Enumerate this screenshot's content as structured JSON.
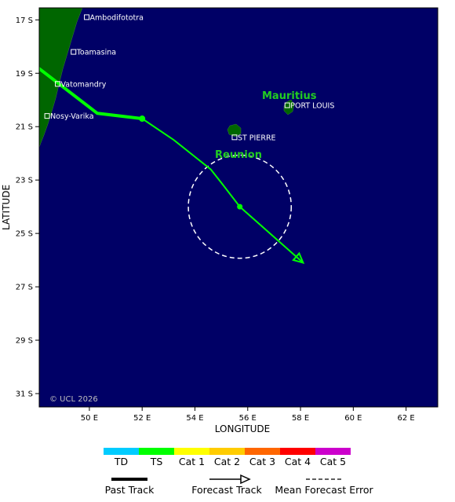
{
  "map": {
    "xlabel": "LONGITUDE",
    "ylabel": "LATITUDE",
    "lon_range": [
      48.1,
      63.2
    ],
    "lat_range": [
      -31.5,
      -16.55
    ],
    "lon_ticks": [
      "50 E",
      "52 E",
      "54 E",
      "56 E",
      "58 E",
      "60 E",
      "62 E"
    ],
    "lat_ticks": [
      "17 S",
      "19 S",
      "21 S",
      "23 S",
      "25 S",
      "27 S",
      "29 S",
      "31 S"
    ],
    "ocean_color": "#000066",
    "land_color": "#006600",
    "copyright": "© UCL 2026"
  },
  "places": [
    {
      "name": "Ambodifototra",
      "lon": 49.9,
      "lat": -16.9
    },
    {
      "name": "Toamasina",
      "lon": 49.4,
      "lat": -18.2
    },
    {
      "name": "Vatomandry",
      "lon": 48.8,
      "lat": -19.4
    },
    {
      "name": "Nosy-Varika",
      "lon": 48.4,
      "lat": -20.6
    },
    {
      "name": "PORT LOUIS",
      "lon": 57.5,
      "lat": -20.2
    },
    {
      "name": "ST PIERRE",
      "lon": 55.5,
      "lat": -21.4
    }
  ],
  "islands": {
    "mauritius": {
      "name": "Mauritius"
    },
    "reunion": {
      "name": "Reunion"
    }
  },
  "track": {
    "past": [
      [
        48.0,
        -18.75
      ],
      [
        50.3,
        -20.5
      ],
      [
        52.0,
        -20.7
      ]
    ],
    "forecast": [
      [
        52.0,
        -20.7
      ],
      [
        53.2,
        -21.5
      ],
      [
        54.6,
        -22.6
      ],
      [
        55.0,
        -23.1
      ],
      [
        55.7,
        -24.0
      ],
      [
        58.1,
        -26.1
      ]
    ],
    "past_color": "#00ff00",
    "forecast_color": "#00ff00",
    "error_circle": {
      "center": [
        55.7,
        -24.0
      ],
      "radius_deg": 1.95
    }
  },
  "legend": {
    "categories": [
      {
        "label": "TD",
        "color": "#00ccff"
      },
      {
        "label": "TS",
        "color": "#00ff00"
      },
      {
        "label": "Cat 1",
        "color": "#ffff00"
      },
      {
        "label": "Cat 2",
        "color": "#ffcc00"
      },
      {
        "label": "Cat 3",
        "color": "#ff6600"
      },
      {
        "label": "Cat 4",
        "color": "#ff0000"
      },
      {
        "label": "Cat 5",
        "color": "#cc00cc"
      }
    ],
    "keys": {
      "past": "Past Track",
      "forecast": "Forecast Track",
      "error": "Mean Forecast Error"
    }
  }
}
